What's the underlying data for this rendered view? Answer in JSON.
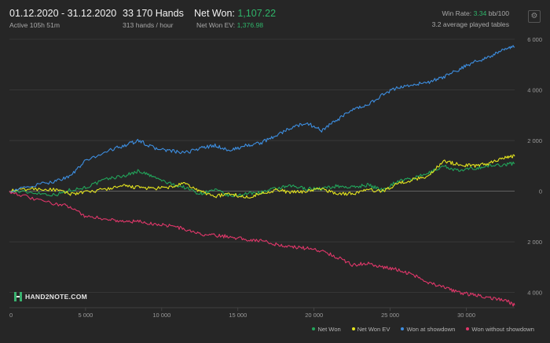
{
  "header": {
    "date_range": "01.12.2020 - 31.12.2020",
    "active": "Active 105h 51m",
    "hands": "33 170 Hands",
    "hands_per_hour": "313 hands / hour",
    "net_won_label": "Net Won:",
    "net_won_value": "1,107.22",
    "net_won_ev_label": "Net Won  EV:",
    "net_won_ev_value": "1,376.98",
    "win_rate_label": "Win Rate:",
    "win_rate_value": "3.34",
    "win_rate_unit": "bb/100",
    "tables": "3.2 average played tables",
    "settings_icon": "gear-icon"
  },
  "logo": {
    "text": "HAND2NOTE.COM"
  },
  "colors": {
    "net_won": "#22a55b",
    "net_won_ev": "#e4e41e",
    "won_at_showdown": "#3d8ee0",
    "won_without_showdown": "#e0376a",
    "accent_green": "#2fb56a"
  },
  "chart_data": {
    "type": "line",
    "xlim": [
      0,
      33170
    ],
    "ylim": [
      -4600,
      6000
    ],
    "x_ticks": [
      0,
      5000,
      10000,
      15000,
      20000,
      25000,
      30000
    ],
    "x_tick_labels": [
      "0",
      "5 000",
      "10 000",
      "15 000",
      "20 000",
      "25 000",
      "30 000"
    ],
    "y_ticks": [
      6000,
      4000,
      2000,
      0,
      -2000,
      -4000
    ],
    "y_tick_labels": [
      "6 000",
      "4 000",
      "2 000",
      "0",
      "2 000",
      "4 000"
    ],
    "grid": true,
    "legend_position": "bottom-right",
    "series": [
      {
        "name": "Net Won",
        "color": "#22a55b",
        "points": [
          [
            0,
            0
          ],
          [
            1500,
            -50
          ],
          [
            3000,
            -150
          ],
          [
            4000,
            50
          ],
          [
            5000,
            150
          ],
          [
            6500,
            500
          ],
          [
            7500,
            600
          ],
          [
            8500,
            800
          ],
          [
            9500,
            550
          ],
          [
            10500,
            300
          ],
          [
            11500,
            150
          ],
          [
            12500,
            -100
          ],
          [
            13500,
            50
          ],
          [
            14500,
            -200
          ],
          [
            15500,
            -100
          ],
          [
            16500,
            -50
          ],
          [
            17500,
            100
          ],
          [
            18500,
            200
          ],
          [
            19500,
            100
          ],
          [
            20500,
            100
          ],
          [
            21500,
            200
          ],
          [
            22500,
            150
          ],
          [
            23500,
            250
          ],
          [
            24500,
            50
          ],
          [
            25500,
            400
          ],
          [
            26500,
            500
          ],
          [
            27500,
            700
          ],
          [
            28500,
            1000
          ],
          [
            29500,
            800
          ],
          [
            30500,
            900
          ],
          [
            31500,
            1000
          ],
          [
            32500,
            1050
          ],
          [
            33170,
            1107
          ]
        ]
      },
      {
        "name": "Net Won  EV",
        "color": "#e4e41e",
        "points": [
          [
            0,
            0
          ],
          [
            1500,
            100
          ],
          [
            3000,
            50
          ],
          [
            4000,
            -100
          ],
          [
            5000,
            -50
          ],
          [
            6500,
            100
          ],
          [
            7500,
            200
          ],
          [
            8500,
            150
          ],
          [
            9500,
            100
          ],
          [
            10500,
            150
          ],
          [
            11500,
            300
          ],
          [
            12500,
            0
          ],
          [
            13500,
            -200
          ],
          [
            14500,
            -100
          ],
          [
            15500,
            -250
          ],
          [
            16500,
            -100
          ],
          [
            17500,
            50
          ],
          [
            18500,
            -50
          ],
          [
            19500,
            0
          ],
          [
            20500,
            100
          ],
          [
            21500,
            -100
          ],
          [
            22500,
            -100
          ],
          [
            23500,
            50
          ],
          [
            24500,
            0
          ],
          [
            25500,
            300
          ],
          [
            26500,
            450
          ],
          [
            27500,
            600
          ],
          [
            28500,
            1200
          ],
          [
            29500,
            1050
          ],
          [
            30500,
            1000
          ],
          [
            31500,
            1100
          ],
          [
            32500,
            1350
          ],
          [
            33170,
            1377
          ]
        ]
      },
      {
        "name": "Won at showdown",
        "color": "#3d8ee0",
        "points": [
          [
            0,
            0
          ],
          [
            1500,
            200
          ],
          [
            3000,
            400
          ],
          [
            4000,
            600
          ],
          [
            5000,
            1200
          ],
          [
            6500,
            1600
          ],
          [
            7500,
            1800
          ],
          [
            8500,
            2000
          ],
          [
            9500,
            1700
          ],
          [
            10500,
            1600
          ],
          [
            11500,
            1500
          ],
          [
            12500,
            1700
          ],
          [
            13500,
            1800
          ],
          [
            14500,
            1600
          ],
          [
            15500,
            1800
          ],
          [
            16500,
            1900
          ],
          [
            17500,
            2200
          ],
          [
            18500,
            2500
          ],
          [
            19500,
            2700
          ],
          [
            20500,
            2400
          ],
          [
            21500,
            2800
          ],
          [
            22500,
            3200
          ],
          [
            23500,
            3400
          ],
          [
            24500,
            3800
          ],
          [
            25500,
            4100
          ],
          [
            26500,
            4200
          ],
          [
            27500,
            4300
          ],
          [
            28500,
            4500
          ],
          [
            29500,
            4800
          ],
          [
            30500,
            5100
          ],
          [
            31500,
            5300
          ],
          [
            32500,
            5600
          ],
          [
            33170,
            5700
          ]
        ]
      },
      {
        "name": "Won without showdown",
        "color": "#e0376a",
        "points": [
          [
            0,
            0
          ],
          [
            1500,
            -300
          ],
          [
            3000,
            -500
          ],
          [
            4000,
            -600
          ],
          [
            5000,
            -1000
          ],
          [
            6500,
            -1100
          ],
          [
            7500,
            -1200
          ],
          [
            8500,
            -1200
          ],
          [
            9500,
            -1300
          ],
          [
            10500,
            -1350
          ],
          [
            11500,
            -1500
          ],
          [
            12500,
            -1700
          ],
          [
            13500,
            -1750
          ],
          [
            14500,
            -1800
          ],
          [
            15500,
            -1900
          ],
          [
            16500,
            -1950
          ],
          [
            17500,
            -2100
          ],
          [
            18500,
            -2200
          ],
          [
            19500,
            -2250
          ],
          [
            20500,
            -2350
          ],
          [
            21500,
            -2600
          ],
          [
            22500,
            -2900
          ],
          [
            23500,
            -2850
          ],
          [
            24500,
            -3000
          ],
          [
            25500,
            -3100
          ],
          [
            26500,
            -3300
          ],
          [
            27500,
            -3600
          ],
          [
            28500,
            -3800
          ],
          [
            29500,
            -4000
          ],
          [
            30500,
            -4100
          ],
          [
            31500,
            -4200
          ],
          [
            32500,
            -4300
          ],
          [
            33170,
            -4500
          ]
        ]
      }
    ]
  }
}
